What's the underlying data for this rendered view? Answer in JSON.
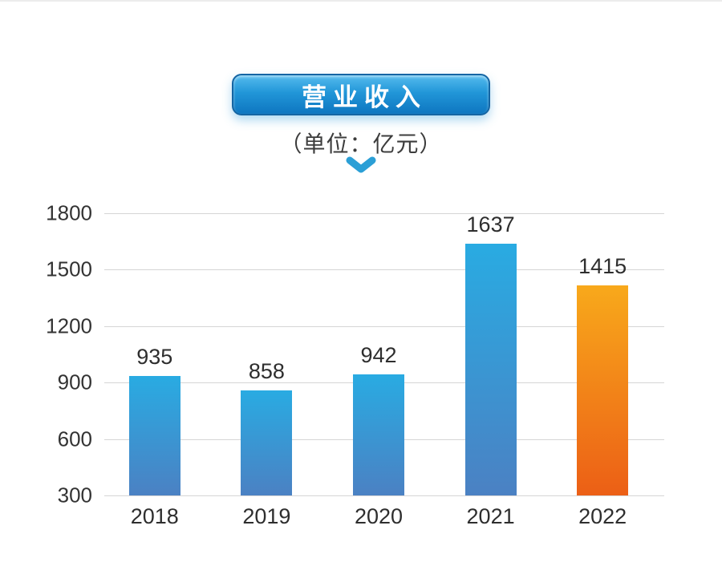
{
  "header": {
    "title": "营业收入",
    "unit_label": "（单位：亿元）"
  },
  "colors": {
    "badge_gradient_top": "#55bbee",
    "badge_gradient_bottom": "#0e76c0",
    "badge_border": "#1465a3",
    "badge_text": "#ffffff",
    "chevron": "#2b9fd6",
    "bar_blue_top": "#29abe2",
    "bar_blue_bottom": "#4b81c3",
    "bar_orange_top": "#f8a91b",
    "bar_orange_bottom": "#ec5f16",
    "gridline": "#d5d5d5",
    "axis_text": "#333333",
    "background": "#ffffff"
  },
  "chart_data": {
    "type": "bar",
    "title": "营业收入",
    "unit": "亿元",
    "categories": [
      "2018",
      "2019",
      "2020",
      "2021",
      "2022"
    ],
    "values": [
      935,
      858,
      942,
      1637,
      1415
    ],
    "bar_colors": [
      "blue",
      "blue",
      "blue",
      "blue",
      "orange"
    ],
    "xlabel": "",
    "ylabel": "",
    "ylim": [
      300,
      1800
    ],
    "yticks": [
      1800,
      1500,
      1200,
      900,
      600,
      300
    ],
    "grid": true,
    "legend": false,
    "value_labels": true
  }
}
